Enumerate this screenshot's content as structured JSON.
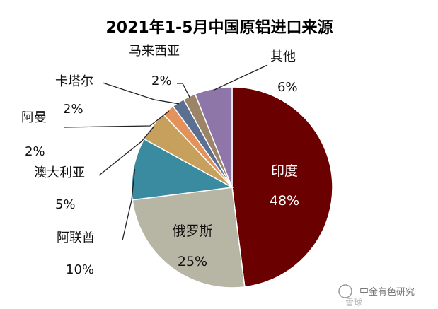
{
  "chart_data": {
    "type": "pie",
    "title": "2021年1-5月中国原铝进口来源",
    "slices": [
      {
        "name": "印度",
        "label": "48%",
        "value": 48,
        "color": "#6b0000"
      },
      {
        "name": "俄罗斯",
        "label": "25%",
        "value": 25,
        "color": "#b7b6a5"
      },
      {
        "name": "阿联酋",
        "label": "10%",
        "value": 10,
        "color": "#3a8aa0"
      },
      {
        "name": "澳大利亚",
        "label": "5%",
        "value": 5,
        "color": "#c7a05e"
      },
      {
        "name": "阿曼",
        "label": "2%",
        "value": 2,
        "color": "#e2925a"
      },
      {
        "name": "卡塔尔",
        "label": "2%",
        "value": 2,
        "color": "#5b6f93"
      },
      {
        "name": "马来西亚",
        "label": "2%",
        "value": 2,
        "color": "#9b8468"
      },
      {
        "name": "其他",
        "label": "6%",
        "value": 6,
        "color": "#8e76a8"
      }
    ]
  },
  "watermark": {
    "text": "中金有色研究",
    "subtext": "雪球"
  }
}
